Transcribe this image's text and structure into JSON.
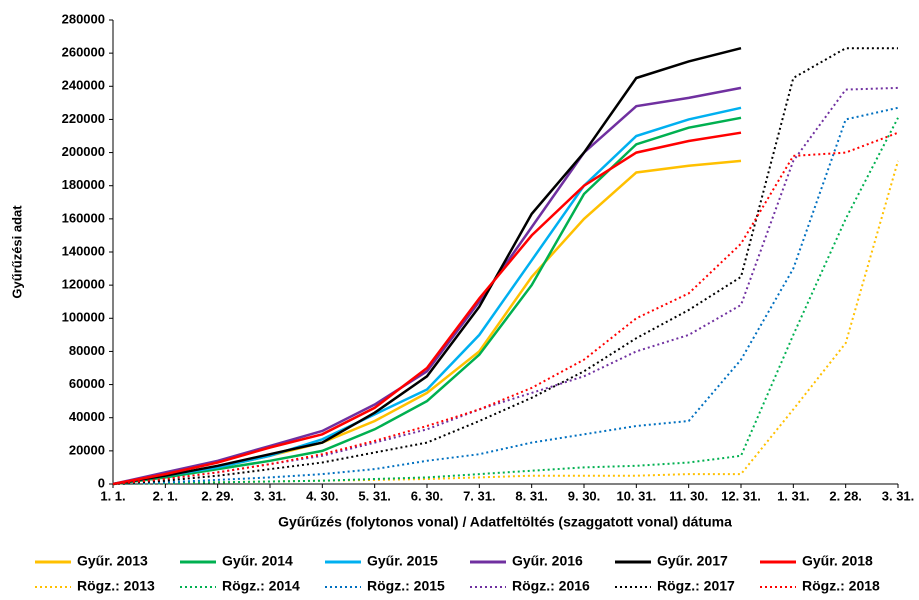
{
  "chart_data": {
    "type": "line",
    "y_label": "Gyűrűzési adat",
    "x_label": "Gyűrűzés (folytonos vonal) / Adatfeltöltés (szaggatott vonal) dátuma",
    "categories": [
      "1. 1.",
      "2. 1.",
      "2. 29.",
      "3. 31.",
      "4. 30.",
      "5. 31.",
      "6. 30.",
      "7. 31.",
      "8. 31.",
      "9. 30.",
      "10. 31.",
      "11. 30.",
      "12. 31.",
      "1. 31.",
      "2. 28.",
      "3. 31."
    ],
    "ylim": [
      0,
      280000
    ],
    "yticks": [
      0,
      20000,
      40000,
      60000,
      80000,
      100000,
      120000,
      140000,
      160000,
      180000,
      200000,
      220000,
      240000,
      260000,
      280000
    ],
    "grid": false,
    "legend": "bottom",
    "series": [
      {
        "name": "Gyűr. 2013",
        "color": "#ffc000",
        "dashed": false,
        "values": [
          0,
          4000,
          10000,
          17000,
          25000,
          38000,
          55000,
          80000,
          125000,
          160000,
          188000,
          192000,
          195000,
          null,
          null,
          null
        ]
      },
      {
        "name": "Gyűr. 2014",
        "color": "#00b050",
        "dashed": false,
        "values": [
          0,
          4000,
          9000,
          14000,
          20000,
          33000,
          50000,
          78000,
          120000,
          175000,
          205000,
          215000,
          221000,
          null,
          null,
          null
        ]
      },
      {
        "name": "Gyűr. 2015",
        "color": "#00b0f0",
        "dashed": false,
        "values": [
          0,
          5000,
          10000,
          17000,
          27000,
          42000,
          57000,
          90000,
          135000,
          180000,
          210000,
          220000,
          227000,
          null,
          null,
          null
        ]
      },
      {
        "name": "Gyűr. 2016",
        "color": "#7030a0",
        "dashed": false,
        "values": [
          0,
          7000,
          14000,
          23000,
          32000,
          48000,
          68000,
          110000,
          155000,
          200000,
          228000,
          233000,
          239000,
          null,
          null,
          null
        ]
      },
      {
        "name": "Gyűr. 2017",
        "color": "#000000",
        "dashed": false,
        "values": [
          0,
          5000,
          11000,
          18000,
          25000,
          43000,
          65000,
          107000,
          163000,
          200000,
          245000,
          255000,
          263000,
          null,
          null,
          null
        ]
      },
      {
        "name": "Gyűr. 2018",
        "color": "#ff0000",
        "dashed": false,
        "values": [
          0,
          6000,
          13000,
          22000,
          30000,
          46000,
          70000,
          112000,
          150000,
          180000,
          200000,
          207000,
          212000,
          null,
          null,
          null
        ]
      },
      {
        "name": "Rögz.: 2013",
        "color": "#ffc000",
        "dashed": true,
        "values": [
          0,
          500,
          1000,
          1500,
          2000,
          2500,
          3000,
          4000,
          5000,
          5000,
          5000,
          6000,
          6000,
          45000,
          85000,
          195000
        ]
      },
      {
        "name": "Rögz.: 2014",
        "color": "#00b050",
        "dashed": true,
        "values": [
          0,
          500,
          1000,
          1500,
          2000,
          3000,
          4000,
          6000,
          8000,
          10000,
          11000,
          13000,
          17000,
          90000,
          160000,
          221000
        ]
      },
      {
        "name": "Rögz.: 2015",
        "color": "#0070c0",
        "dashed": true,
        "values": [
          0,
          1000,
          2500,
          4000,
          6000,
          9000,
          14000,
          18000,
          25000,
          30000,
          35000,
          38000,
          75000,
          130000,
          220000,
          227000
        ]
      },
      {
        "name": "Rögz.: 2016",
        "color": "#7030a0",
        "dashed": true,
        "values": [
          0,
          3000,
          7000,
          12000,
          17000,
          25000,
          33000,
          45000,
          55000,
          65000,
          80000,
          90000,
          108000,
          195000,
          238000,
          239000
        ]
      },
      {
        "name": "Rögz.: 2017",
        "color": "#000000",
        "dashed": true,
        "values": [
          0,
          2000,
          5000,
          9000,
          13000,
          19000,
          25000,
          38000,
          52000,
          68000,
          88000,
          105000,
          125000,
          245000,
          263000,
          263000
        ]
      },
      {
        "name": "Rögz.: 2018",
        "color": "#ff0000",
        "dashed": true,
        "values": [
          0,
          3000,
          7000,
          12000,
          18000,
          26000,
          35000,
          45000,
          58000,
          75000,
          100000,
          115000,
          145000,
          198000,
          200000,
          212000
        ]
      }
    ]
  }
}
